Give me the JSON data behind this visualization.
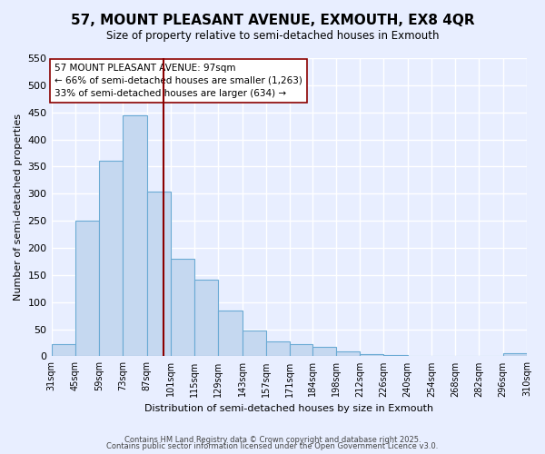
{
  "title": "57, MOUNT PLEASANT AVENUE, EXMOUTH, EX8 4QR",
  "subtitle": "Size of property relative to semi-detached houses in Exmouth",
  "xlabel": "Distribution of semi-detached houses by size in Exmouth",
  "ylabel": "Number of semi-detached properties",
  "bar_values": [
    23,
    250,
    360,
    444,
    303,
    180,
    142,
    85,
    47,
    28,
    23,
    18,
    9,
    4,
    2,
    1,
    1,
    1,
    1,
    5
  ],
  "bin_edges": [
    31,
    45,
    59,
    73,
    87,
    101,
    115,
    129,
    143,
    157,
    171,
    184,
    198,
    212,
    226,
    240,
    254,
    268,
    282,
    296,
    310
  ],
  "bin_labels": [
    "31sqm",
    "45sqm",
    "59sqm",
    "73sqm",
    "87sqm",
    "101sqm",
    "115sqm",
    "129sqm",
    "143sqm",
    "157sqm",
    "171sqm",
    "184sqm",
    "198sqm",
    "212sqm",
    "226sqm",
    "240sqm",
    "254sqm",
    "268sqm",
    "282sqm",
    "296sqm",
    "310sqm"
  ],
  "bar_color": "#c5d8f0",
  "bar_edge_color": "#6aaad4",
  "property_value": 97,
  "red_line_label": "57 MOUNT PLEASANT AVENUE: 97sqm",
  "annotation_smaller": "← 66% of semi-detached houses are smaller (1,263)",
  "annotation_larger": "33% of semi-detached houses are larger (634) →",
  "ylim": [
    0,
    550
  ],
  "yticks": [
    0,
    50,
    100,
    150,
    200,
    250,
    300,
    350,
    400,
    450,
    500,
    550
  ],
  "footer1": "Contains HM Land Registry data © Crown copyright and database right 2025.",
  "footer2": "Contains public sector information licensed under the Open Government Licence v3.0.",
  "background_color": "#e8eeff",
  "plot_background_color": "#e8eeff",
  "grid_color": "#ffffff"
}
